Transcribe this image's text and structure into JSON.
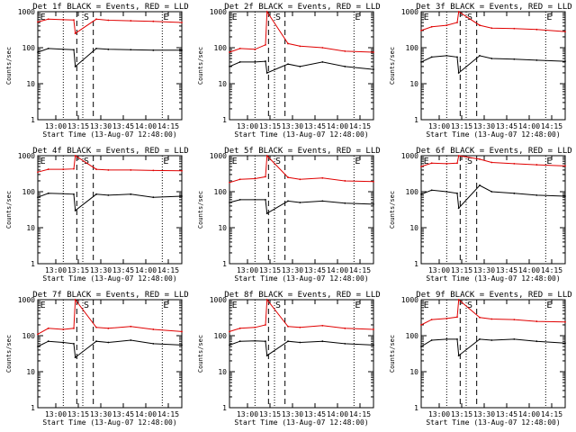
{
  "figure": {
    "xlabel": "Start Time (13-Aug-07 12:48:00)",
    "ylabel": "Counts/sec",
    "series_colors": {
      "events": "#000000",
      "lld": "#e00000"
    }
  },
  "chart_data": [
    {
      "type": "line",
      "title": "Det 1f BLACK = Events, RED = LLD",
      "x_ticks": [
        "13:00",
        "13:15",
        "13:30",
        "13:45",
        "14:00",
        "14:15"
      ],
      "y_ticks": [
        "1",
        "10",
        "100",
        "1000"
      ],
      "y_scale": "log",
      "ylim": [
        1,
        1000
      ],
      "x_minutes_since_start": [
        0,
        96
      ],
      "markers": [
        {
          "label": "E",
          "x": "12:49"
        },
        {
          "label": "S",
          "x": "13:18"
        },
        {
          "label": "E",
          "x": "14:11"
        }
      ],
      "dotted_lines": [
        "13:05",
        "13:18",
        "14:11"
      ],
      "dashed_lines": [
        "13:14",
        "13:25"
      ],
      "series": [
        {
          "name": "BLACK = Events",
          "role": "events",
          "x": [
            "12:48",
            "12:55",
            "13:05",
            "13:12",
            "13:13",
            "13:27",
            "13:35",
            "13:50",
            "14:05",
            "14:24"
          ],
          "y": [
            75,
            95,
            90,
            88,
            30,
            95,
            90,
            88,
            85,
            85
          ]
        },
        {
          "name": "RED = LLD",
          "role": "lld",
          "x": [
            "12:48",
            "12:55",
            "13:05",
            "13:12",
            "13:13",
            "13:27",
            "13:35",
            "13:50",
            "14:05",
            "14:24"
          ],
          "y": [
            520,
            620,
            600,
            590,
            250,
            620,
            580,
            560,
            540,
            500
          ]
        }
      ]
    },
    {
      "type": "line",
      "title": "Det 2f BLACK = Events, RED = LLD",
      "x_ticks": [
        "13:00",
        "13:15",
        "13:30",
        "13:45",
        "14:00",
        "14:15"
      ],
      "y_ticks": [
        "1",
        "10",
        "100",
        "1000"
      ],
      "y_scale": "log",
      "ylim": [
        1,
        1000
      ],
      "x_minutes_since_start": [
        0,
        96
      ],
      "markers": [
        {
          "label": "E",
          "x": "12:49"
        },
        {
          "label": "S",
          "x": "13:18"
        },
        {
          "label": "E",
          "x": "14:11"
        }
      ],
      "dotted_lines": [
        "13:05",
        "13:18",
        "14:11"
      ],
      "dashed_lines": [
        "13:14",
        "13:25"
      ],
      "series": [
        {
          "name": "BLACK = Events",
          "role": "events",
          "x": [
            "12:48",
            "12:55",
            "13:05",
            "13:12",
            "13:13",
            "13:27",
            "13:35",
            "13:50",
            "14:05",
            "14:24"
          ],
          "y": [
            30,
            40,
            40,
            42,
            20,
            35,
            30,
            40,
            30,
            25
          ]
        },
        {
          "name": "RED = LLD",
          "role": "lld",
          "x": [
            "12:48",
            "12:55",
            "13:05",
            "13:12",
            "13:13",
            "13:27",
            "13:35",
            "13:50",
            "14:05",
            "14:24"
          ],
          "y": [
            75,
            95,
            90,
            120,
            1000,
            130,
            110,
            100,
            80,
            75
          ]
        }
      ]
    },
    {
      "type": "line",
      "title": "Det 3f BLACK = Events, RED = LLD",
      "x_ticks": [
        "13:00",
        "13:15",
        "13:30",
        "13:45",
        "14:00",
        "14:15"
      ],
      "y_ticks": [
        "1",
        "10",
        "100",
        "1000"
      ],
      "y_scale": "log",
      "ylim": [
        1,
        1000
      ],
      "x_minutes_since_start": [
        0,
        96
      ],
      "markers": [
        {
          "label": "E",
          "x": "12:49"
        },
        {
          "label": "S",
          "x": "13:18"
        },
        {
          "label": "E",
          "x": "14:11"
        }
      ],
      "dotted_lines": [
        "13:05",
        "13:18",
        "14:11"
      ],
      "dashed_lines": [
        "13:14",
        "13:25"
      ],
      "series": [
        {
          "name": "BLACK = Events",
          "role": "events",
          "x": [
            "12:48",
            "12:55",
            "13:05",
            "13:12",
            "13:13",
            "13:27",
            "13:35",
            "13:50",
            "14:05",
            "14:24"
          ],
          "y": [
            40,
            55,
            60,
            55,
            20,
            60,
            50,
            48,
            45,
            42
          ]
        },
        {
          "name": "RED = LLD",
          "role": "lld",
          "x": [
            "12:48",
            "12:55",
            "13:05",
            "13:12",
            "13:13",
            "13:27",
            "13:35",
            "13:50",
            "14:05",
            "14:24"
          ],
          "y": [
            300,
            380,
            420,
            500,
            1000,
            420,
            350,
            340,
            320,
            280
          ]
        }
      ]
    },
    {
      "type": "line",
      "title": "Det 4f BLACK = Events, RED = LLD",
      "x_ticks": [
        "13:00",
        "13:15",
        "13:30",
        "13:45",
        "14:00",
        "14:15"
      ],
      "y_ticks": [
        "1",
        "10",
        "100",
        "1000"
      ],
      "y_scale": "log",
      "ylim": [
        1,
        1000
      ],
      "x_minutes_since_start": [
        0,
        96
      ],
      "markers": [
        {
          "label": "E",
          "x": "12:49"
        },
        {
          "label": "S",
          "x": "13:18"
        },
        {
          "label": "E",
          "x": "14:11"
        }
      ],
      "dotted_lines": [
        "13:05",
        "13:18",
        "14:11"
      ],
      "dashed_lines": [
        "13:14",
        "13:25"
      ],
      "series": [
        {
          "name": "BLACK = Events",
          "role": "events",
          "x": [
            "12:48",
            "12:55",
            "13:05",
            "13:12",
            "13:13",
            "13:27",
            "13:35",
            "13:50",
            "14:05",
            "14:24"
          ],
          "y": [
            70,
            90,
            88,
            85,
            30,
            85,
            80,
            85,
            70,
            75
          ]
        },
        {
          "name": "RED = LLD",
          "role": "lld",
          "x": [
            "12:48",
            "12:55",
            "13:05",
            "13:12",
            "13:13",
            "13:27",
            "13:35",
            "13:50",
            "14:05",
            "14:24"
          ],
          "y": [
            350,
            420,
            420,
            430,
            1000,
            420,
            400,
            400,
            390,
            380
          ]
        }
      ]
    },
    {
      "type": "line",
      "title": "Det 5f BLACK = Events, RED = LLD",
      "x_ticks": [
        "13:00",
        "13:15",
        "13:30",
        "13:45",
        "14:00",
        "14:15"
      ],
      "y_ticks": [
        "1",
        "10",
        "100",
        "1000"
      ],
      "y_scale": "log",
      "ylim": [
        1,
        1000
      ],
      "x_minutes_since_start": [
        0,
        96
      ],
      "markers": [
        {
          "label": "E",
          "x": "12:49"
        },
        {
          "label": "S",
          "x": "13:18"
        },
        {
          "label": "E",
          "x": "14:11"
        }
      ],
      "dotted_lines": [
        "13:05",
        "13:18",
        "14:11"
      ],
      "dashed_lines": [
        "13:14",
        "13:25"
      ],
      "series": [
        {
          "name": "BLACK = Events",
          "role": "events",
          "x": [
            "12:48",
            "12:55",
            "13:05",
            "13:12",
            "13:13",
            "13:27",
            "13:35",
            "13:50",
            "14:05",
            "14:24"
          ],
          "y": [
            50,
            60,
            60,
            60,
            25,
            55,
            50,
            55,
            48,
            45
          ]
        },
        {
          "name": "RED = LLD",
          "role": "lld",
          "x": [
            "12:48",
            "12:55",
            "13:05",
            "13:12",
            "13:13",
            "13:27",
            "13:35",
            "13:50",
            "14:05",
            "14:24"
          ],
          "y": [
            180,
            220,
            230,
            260,
            1000,
            250,
            220,
            240,
            200,
            190
          ]
        }
      ]
    },
    {
      "type": "line",
      "title": "Det 6f BLACK = Events, RED = LLD",
      "x_ticks": [
        "13:00",
        "13:15",
        "13:30",
        "13:45",
        "14:00",
        "14:15"
      ],
      "y_ticks": [
        "1",
        "10",
        "100",
        "1000"
      ],
      "y_scale": "log",
      "ylim": [
        1,
        1000
      ],
      "x_minutes_since_start": [
        0,
        96
      ],
      "markers": [
        {
          "label": "E",
          "x": "12:49"
        },
        {
          "label": "S",
          "x": "13:18"
        },
        {
          "label": "E",
          "x": "14:11"
        }
      ],
      "dotted_lines": [
        "13:05",
        "13:18",
        "14:11"
      ],
      "dashed_lines": [
        "13:14",
        "13:25"
      ],
      "series": [
        {
          "name": "BLACK = Events",
          "role": "events",
          "x": [
            "12:48",
            "12:55",
            "13:05",
            "13:12",
            "13:13",
            "13:27",
            "13:35",
            "13:50",
            "14:05",
            "14:24"
          ],
          "y": [
            85,
            110,
            100,
            90,
            35,
            150,
            100,
            90,
            80,
            75
          ]
        },
        {
          "name": "RED = LLD",
          "role": "lld",
          "x": [
            "12:48",
            "12:55",
            "13:05",
            "13:12",
            "13:13",
            "13:27",
            "13:35",
            "13:50",
            "14:05",
            "14:24"
          ],
          "y": [
            500,
            620,
            600,
            620,
            1000,
            800,
            650,
            600,
            560,
            520
          ]
        }
      ]
    },
    {
      "type": "line",
      "title": "Det 7f BLACK = Events, RED = LLD",
      "x_ticks": [
        "13:00",
        "13:15",
        "13:30",
        "13:45",
        "14:00",
        "14:15"
      ],
      "y_ticks": [
        "1",
        "10",
        "100",
        "1000"
      ],
      "y_scale": "log",
      "ylim": [
        1,
        1000
      ],
      "x_minutes_since_start": [
        0,
        96
      ],
      "markers": [
        {
          "label": "E",
          "x": "12:49"
        },
        {
          "label": "S",
          "x": "13:18"
        },
        {
          "label": "E",
          "x": "14:11"
        }
      ],
      "dotted_lines": [
        "13:05",
        "13:18",
        "14:11"
      ],
      "dashed_lines": [
        "13:14",
        "13:25"
      ],
      "series": [
        {
          "name": "BLACK = Events",
          "role": "events",
          "x": [
            "12:48",
            "12:55",
            "13:05",
            "13:12",
            "13:13",
            "13:27",
            "13:35",
            "13:50",
            "14:05",
            "14:24"
          ],
          "y": [
            50,
            70,
            65,
            60,
            25,
            70,
            65,
            75,
            60,
            55
          ]
        },
        {
          "name": "RED = LLD",
          "role": "lld",
          "x": [
            "12:48",
            "12:55",
            "13:05",
            "13:12",
            "13:13",
            "13:27",
            "13:35",
            "13:50",
            "14:05",
            "14:24"
          ],
          "y": [
            110,
            160,
            150,
            160,
            1000,
            170,
            160,
            180,
            150,
            130
          ]
        }
      ]
    },
    {
      "type": "line",
      "title": "Det 8f BLACK = Events, RED = LLD",
      "x_ticks": [
        "13:00",
        "13:15",
        "13:30",
        "13:45",
        "14:00",
        "14:15"
      ],
      "y_ticks": [
        "1",
        "10",
        "100",
        "1000"
      ],
      "y_scale": "log",
      "ylim": [
        1,
        1000
      ],
      "x_minutes_since_start": [
        0,
        96
      ],
      "markers": [
        {
          "label": "E",
          "x": "12:49"
        },
        {
          "label": "S",
          "x": "13:18"
        },
        {
          "label": "E",
          "x": "14:11"
        }
      ],
      "dotted_lines": [
        "13:05",
        "13:18",
        "14:11"
      ],
      "dashed_lines": [
        "13:14",
        "13:25"
      ],
      "series": [
        {
          "name": "BLACK = Events",
          "role": "events",
          "x": [
            "12:48",
            "12:55",
            "13:05",
            "13:12",
            "13:13",
            "13:27",
            "13:35",
            "13:50",
            "14:05",
            "14:24"
          ],
          "y": [
            55,
            70,
            72,
            70,
            28,
            70,
            65,
            70,
            60,
            55
          ]
        },
        {
          "name": "RED = LLD",
          "role": "lld",
          "x": [
            "12:48",
            "12:55",
            "13:05",
            "13:12",
            "13:13",
            "13:27",
            "13:35",
            "13:50",
            "14:05",
            "14:24"
          ],
          "y": [
            130,
            160,
            170,
            200,
            1000,
            180,
            170,
            190,
            160,
            150
          ]
        }
      ]
    },
    {
      "type": "line",
      "title": "Det 9f BLACK = Events, RED = LLD",
      "x_ticks": [
        "13:00",
        "13:15",
        "13:30",
        "13:45",
        "14:00",
        "14:15"
      ],
      "y_ticks": [
        "1",
        "10",
        "100",
        "1000"
      ],
      "y_scale": "log",
      "ylim": [
        1,
        1000
      ],
      "x_minutes_since_start": [
        0,
        96
      ],
      "markers": [
        {
          "label": "E",
          "x": "12:49"
        },
        {
          "label": "S",
          "x": "13:18"
        },
        {
          "label": "E",
          "x": "14:11"
        }
      ],
      "dotted_lines": [
        "13:05",
        "13:18",
        "14:11"
      ],
      "dashed_lines": [
        "13:14",
        "13:25"
      ],
      "series": [
        {
          "name": "BLACK = Events",
          "role": "events",
          "x": [
            "12:48",
            "12:55",
            "13:05",
            "13:12",
            "13:13",
            "13:27",
            "13:35",
            "13:50",
            "14:05",
            "14:24"
          ],
          "y": [
            50,
            75,
            80,
            80,
            28,
            80,
            75,
            80,
            70,
            62
          ]
        },
        {
          "name": "RED = LLD",
          "role": "lld",
          "x": [
            "12:48",
            "12:55",
            "13:05",
            "13:12",
            "13:13",
            "13:27",
            "13:35",
            "13:50",
            "14:05",
            "14:24"
          ],
          "y": [
            200,
            280,
            300,
            330,
            1000,
            320,
            290,
            280,
            250,
            240
          ]
        }
      ]
    }
  ]
}
